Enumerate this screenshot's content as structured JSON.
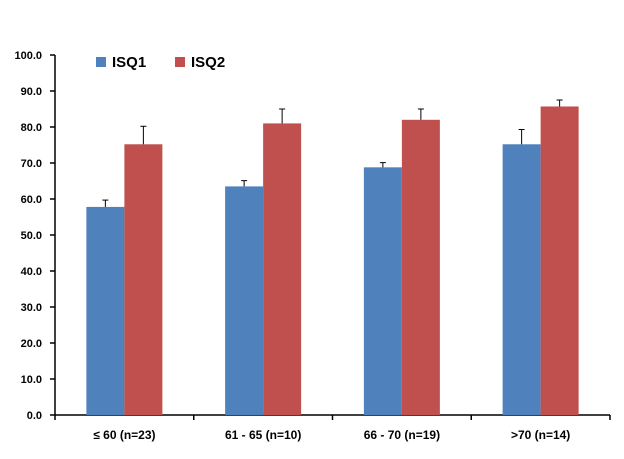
{
  "chart_data": {
    "type": "bar",
    "title": "",
    "xlabel": "",
    "ylabel": "",
    "categories": [
      "≤ 60 (n=23)",
      "61 - 65 (n=10)",
      "66 - 70 (n=19)",
      ">70 (n=14)"
    ],
    "series": [
      {
        "name": "ISQ1",
        "color": "#4f81bd",
        "values": [
          57.8,
          63.5,
          68.8,
          75.2
        ],
        "error": [
          1.9,
          1.6,
          1.3,
          4.1
        ]
      },
      {
        "name": "ISQ2",
        "color": "#c0504d",
        "values": [
          75.2,
          81.0,
          82.0,
          85.7
        ],
        "error": [
          5.0,
          4.0,
          3.0,
          1.8
        ]
      }
    ],
    "ylim": [
      0,
      100
    ],
    "y_ticks": [
      "0.0",
      "10.0",
      "20.0",
      "30.0",
      "40.0",
      "50.0",
      "60.0",
      "70.0",
      "80.0",
      "90.0",
      "100.0"
    ],
    "error_bars": "upper only",
    "grid": false,
    "legend_position": "top-left"
  }
}
